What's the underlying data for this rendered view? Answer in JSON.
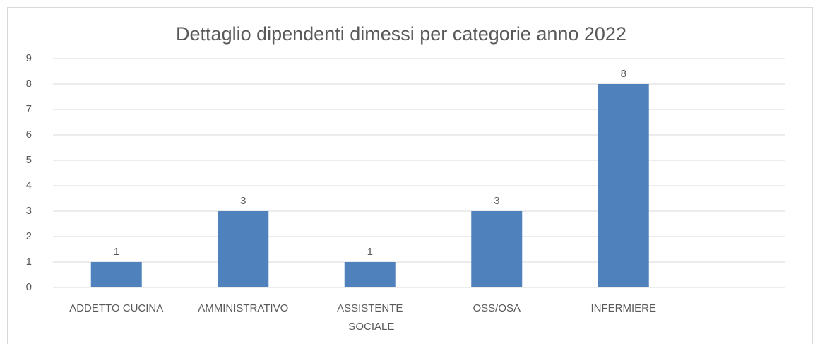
{
  "chart_data": {
    "type": "bar",
    "title": "Dettaglio dipendenti dimessi per categorie anno 2022",
    "categories": [
      "ADDETTO CUCINA",
      "AMMINISTRATIVO",
      "ASSISTENTE SOCIALE",
      "OSS/OSA",
      "INFERMIERE",
      null
    ],
    "values": [
      1,
      3,
      1,
      3,
      8,
      null
    ],
    "color": "#4f81bd",
    "ylim": [
      0,
      9
    ],
    "yticks": [
      0,
      1,
      2,
      3,
      4,
      5,
      6,
      7,
      8,
      9
    ],
    "grid": true
  }
}
